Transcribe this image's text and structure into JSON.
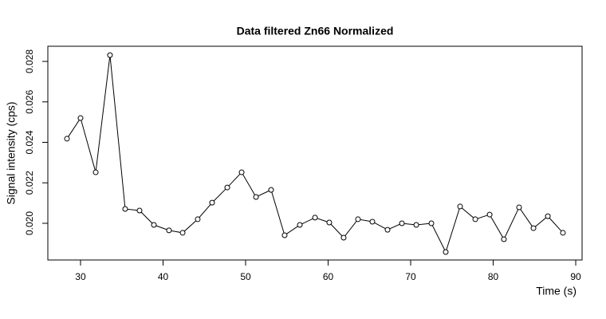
{
  "chart_data": {
    "type": "line",
    "title": "Data filtered Zn66 Normalized",
    "x_label": "Time (s)",
    "y_label": "Signal intensity (cps)",
    "color": "#000000",
    "x": [
      28.36,
      30.0,
      31.84,
      33.57,
      35.41,
      37.15,
      38.89,
      40.72,
      42.37,
      44.2,
      45.94,
      47.78,
      49.52,
      51.26,
      53.09,
      54.73,
      56.57,
      58.41,
      60.14,
      61.88,
      63.62,
      65.36,
      67.2,
      68.94,
      70.68,
      72.51,
      74.25,
      75.99,
      77.83,
      79.57,
      81.3,
      83.14,
      84.88,
      86.62,
      88.45
    ],
    "values": [
      0.02418,
      0.0252,
      0.02252,
      0.02831,
      0.02071,
      0.02063,
      0.01992,
      0.01965,
      0.01953,
      0.0202,
      0.02102,
      0.02177,
      0.02252,
      0.0213,
      0.02165,
      0.01941,
      0.01992,
      0.02028,
      0.02004,
      0.01929,
      0.0202,
      0.02008,
      0.01968,
      0.02,
      0.01992,
      0.02,
      0.01858,
      0.02083,
      0.0202,
      0.02043,
      0.01921,
      0.02079,
      0.01976,
      0.02035,
      0.01953
    ],
    "xlim": [
      26.04,
      90.77
    ],
    "ylim": [
      0.018187,
      0.028749
    ],
    "xticks": [
      30,
      40,
      50,
      60,
      70,
      80,
      90
    ],
    "yticks": [
      {
        "value": 0.02,
        "label": "0.020"
      },
      {
        "value": 0.022,
        "label": "0.022"
      },
      {
        "value": 0.024,
        "label": "0.024"
      },
      {
        "value": 0.026,
        "label": "0.026"
      },
      {
        "value": 0.028,
        "label": "0.028"
      }
    ]
  }
}
